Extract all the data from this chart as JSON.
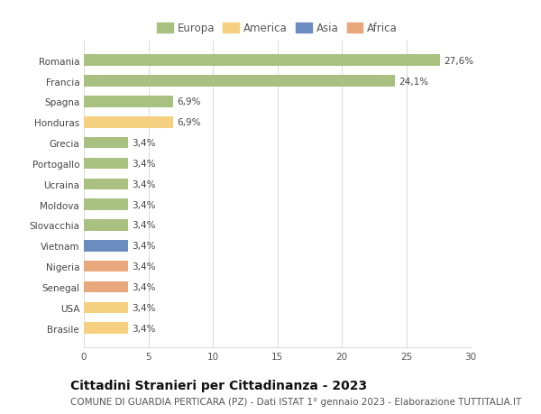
{
  "categories": [
    "Brasile",
    "USA",
    "Senegal",
    "Nigeria",
    "Vietnam",
    "Slovacchia",
    "Moldova",
    "Ucraina",
    "Portogallo",
    "Grecia",
    "Honduras",
    "Spagna",
    "Francia",
    "Romania"
  ],
  "values": [
    3.4,
    3.4,
    3.4,
    3.4,
    3.4,
    3.4,
    3.4,
    3.4,
    3.4,
    3.4,
    6.9,
    6.9,
    24.1,
    27.6
  ],
  "bar_colors": [
    "#f5d080",
    "#f5d080",
    "#e8a87c",
    "#e8a87c",
    "#6b8cbf",
    "#a8c080",
    "#a8c080",
    "#a8c080",
    "#a8c080",
    "#a8c080",
    "#f5d080",
    "#a8c080",
    "#a8c080",
    "#a8c080"
  ],
  "percentages": [
    "3,4%",
    "3,4%",
    "3,4%",
    "3,4%",
    "3,4%",
    "3,4%",
    "3,4%",
    "3,4%",
    "3,4%",
    "3,4%",
    "6,9%",
    "6,9%",
    "24,1%",
    "27,6%"
  ],
  "xlim": [
    0,
    30
  ],
  "xticks": [
    0,
    5,
    10,
    15,
    20,
    25,
    30
  ],
  "title": "Cittadini Stranieri per Cittadinanza - 2023",
  "subtitle": "COMUNE DI GUARDIA PERTICARA (PZ) - Dati ISTAT 1° gennaio 2023 - Elaborazione TUTTITALIA.IT",
  "legend_labels": [
    "Europa",
    "America",
    "Asia",
    "Africa"
  ],
  "legend_colors": [
    "#a8c080",
    "#f5d080",
    "#6b8cbf",
    "#e8a87c"
  ],
  "background_color": "#ffffff",
  "grid_color": "#dddddd",
  "bar_height": 0.55,
  "title_fontsize": 10,
  "subtitle_fontsize": 7.5,
  "label_fontsize": 7.5,
  "tick_fontsize": 7.5,
  "legend_fontsize": 8.5
}
